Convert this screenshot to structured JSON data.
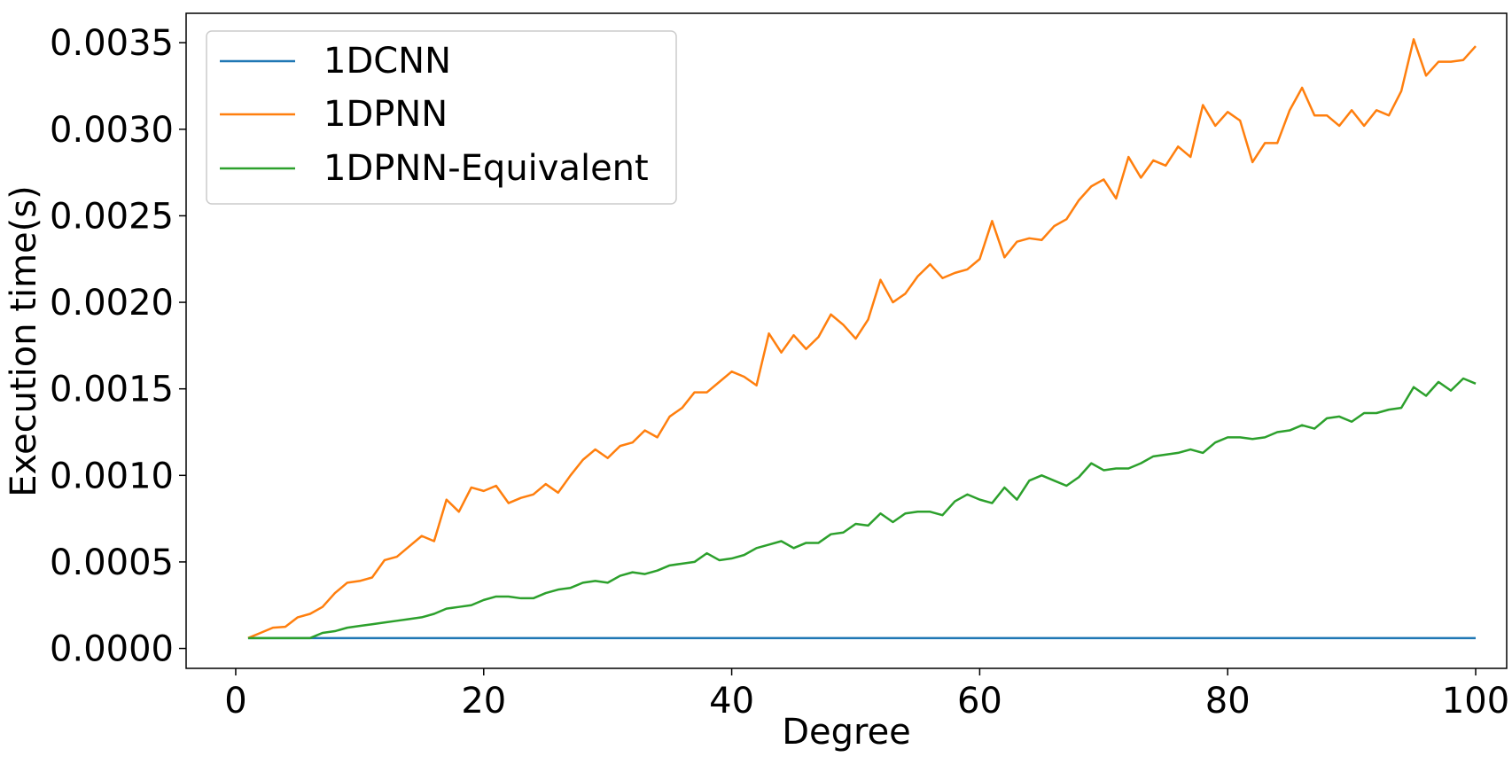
{
  "chart_data": {
    "type": "line",
    "title": "",
    "xlabel": "Degree",
    "ylabel": "Execution time(s)",
    "xlim": [
      -4,
      102.5
    ],
    "ylim": [
      -0.000115,
      0.00367
    ],
    "xticks": [
      0,
      20,
      40,
      60,
      80,
      100
    ],
    "xtick_labels": [
      "0",
      "20",
      "40",
      "60",
      "80",
      "100"
    ],
    "yticks": [
      0.0,
      0.0005,
      0.001,
      0.0015,
      0.002,
      0.0025,
      0.003,
      0.0035
    ],
    "ytick_labels": [
      "0.0000",
      "0.0005",
      "0.0010",
      "0.0015",
      "0.0020",
      "0.0025",
      "0.0030",
      "0.0035"
    ],
    "grid": false,
    "legend_position": "top-left",
    "x": [
      1,
      2,
      3,
      4,
      5,
      6,
      7,
      8,
      9,
      10,
      11,
      12,
      13,
      14,
      15,
      16,
      17,
      18,
      19,
      20,
      21,
      22,
      23,
      24,
      25,
      26,
      27,
      28,
      29,
      30,
      31,
      32,
      33,
      34,
      35,
      36,
      37,
      38,
      39,
      40,
      41,
      42,
      43,
      44,
      45,
      46,
      47,
      48,
      49,
      50,
      51,
      52,
      53,
      54,
      55,
      56,
      57,
      58,
      59,
      60,
      61,
      62,
      63,
      64,
      65,
      66,
      67,
      68,
      69,
      70,
      71,
      72,
      73,
      74,
      75,
      76,
      77,
      78,
      79,
      80,
      81,
      82,
      83,
      84,
      85,
      86,
      87,
      88,
      89,
      90,
      91,
      92,
      93,
      94,
      95,
      96,
      97,
      98,
      99,
      100
    ],
    "series": [
      {
        "name": "1DCNN",
        "color": "#1f77b4",
        "values": [
          6e-05,
          6e-05,
          6e-05,
          6e-05,
          6e-05,
          6e-05,
          6e-05,
          6e-05,
          6e-05,
          6e-05,
          6e-05,
          6e-05,
          6e-05,
          6e-05,
          6e-05,
          6e-05,
          6e-05,
          6e-05,
          6e-05,
          6e-05,
          6e-05,
          6e-05,
          6e-05,
          6e-05,
          6e-05,
          6e-05,
          6e-05,
          6e-05,
          6e-05,
          6e-05,
          6e-05,
          6e-05,
          6e-05,
          6e-05,
          6e-05,
          6e-05,
          6e-05,
          6e-05,
          6e-05,
          6e-05,
          6e-05,
          6e-05,
          6e-05,
          6e-05,
          6e-05,
          6e-05,
          6e-05,
          6e-05,
          6e-05,
          6e-05,
          6e-05,
          6e-05,
          6e-05,
          6e-05,
          6e-05,
          6e-05,
          6e-05,
          6e-05,
          6e-05,
          6e-05,
          6e-05,
          6e-05,
          6e-05,
          6e-05,
          6e-05,
          6e-05,
          6e-05,
          6e-05,
          6e-05,
          6e-05,
          6e-05,
          6e-05,
          6e-05,
          6e-05,
          6e-05,
          6e-05,
          6e-05,
          6e-05,
          6e-05,
          6e-05,
          6e-05,
          6e-05,
          6e-05,
          6e-05,
          6e-05,
          6e-05,
          6e-05,
          6e-05,
          6e-05,
          6e-05,
          6e-05,
          6e-05,
          6e-05,
          6e-05,
          6e-05,
          6e-05,
          6e-05,
          6e-05,
          6e-05,
          6e-05
        ]
      },
      {
        "name": "1DPNN",
        "color": "#ff7f0e",
        "values": [
          6e-05,
          9e-05,
          0.00012,
          0.000125,
          0.00018,
          0.0002,
          0.00024,
          0.00032,
          0.00038,
          0.00039,
          0.00041,
          0.00051,
          0.00053,
          0.00059,
          0.00065,
          0.00062,
          0.00086,
          0.00079,
          0.00093,
          0.00091,
          0.00094,
          0.00084,
          0.00087,
          0.00089,
          0.00095,
          0.0009,
          0.001,
          0.00109,
          0.00115,
          0.0011,
          0.00117,
          0.00119,
          0.00126,
          0.00122,
          0.00134,
          0.00139,
          0.00148,
          0.00148,
          0.00154,
          0.0016,
          0.00157,
          0.00152,
          0.00182,
          0.00171,
          0.00181,
          0.00173,
          0.0018,
          0.00193,
          0.00187,
          0.00179,
          0.0019,
          0.00213,
          0.002,
          0.00205,
          0.00215,
          0.00222,
          0.00214,
          0.00217,
          0.00219,
          0.00225,
          0.00247,
          0.00226,
          0.00235,
          0.00237,
          0.00236,
          0.00244,
          0.00248,
          0.00259,
          0.00267,
          0.00271,
          0.0026,
          0.00284,
          0.00272,
          0.00282,
          0.00279,
          0.0029,
          0.00284,
          0.00314,
          0.00302,
          0.0031,
          0.00305,
          0.00281,
          0.00292,
          0.00292,
          0.00311,
          0.00324,
          0.00308,
          0.00308,
          0.00302,
          0.00311,
          0.00302,
          0.00311,
          0.00308,
          0.00322,
          0.00352,
          0.00331,
          0.00339,
          0.00339,
          0.0034,
          0.00348
        ]
      },
      {
        "name": "1DPNN-Equivalent",
        "color": "#2ca02c",
        "values": [
          6e-05,
          6e-05,
          6e-05,
          6e-05,
          6e-05,
          6e-05,
          9e-05,
          0.0001,
          0.00012,
          0.00013,
          0.00014,
          0.00015,
          0.00016,
          0.00017,
          0.00018,
          0.0002,
          0.00023,
          0.00024,
          0.00025,
          0.00028,
          0.0003,
          0.0003,
          0.00029,
          0.00029,
          0.00032,
          0.00034,
          0.00035,
          0.00038,
          0.00039,
          0.00038,
          0.00042,
          0.00044,
          0.00043,
          0.00045,
          0.00048,
          0.00049,
          0.0005,
          0.00055,
          0.00051,
          0.00052,
          0.00054,
          0.00058,
          0.0006,
          0.00062,
          0.00058,
          0.00061,
          0.00061,
          0.00066,
          0.00067,
          0.00072,
          0.00071,
          0.00078,
          0.00073,
          0.00078,
          0.00079,
          0.00079,
          0.00077,
          0.00085,
          0.00089,
          0.00086,
          0.00084,
          0.00093,
          0.00086,
          0.00097,
          0.001,
          0.00097,
          0.00094,
          0.00099,
          0.00107,
          0.00103,
          0.00104,
          0.00104,
          0.00107,
          0.00111,
          0.00112,
          0.00113,
          0.00115,
          0.00113,
          0.00119,
          0.00122,
          0.00122,
          0.00121,
          0.00122,
          0.00125,
          0.00126,
          0.00129,
          0.00127,
          0.00133,
          0.00134,
          0.00131,
          0.00136,
          0.00136,
          0.00138,
          0.00139,
          0.00151,
          0.00146,
          0.00154,
          0.00149,
          0.00156,
          0.00153
        ]
      }
    ]
  }
}
